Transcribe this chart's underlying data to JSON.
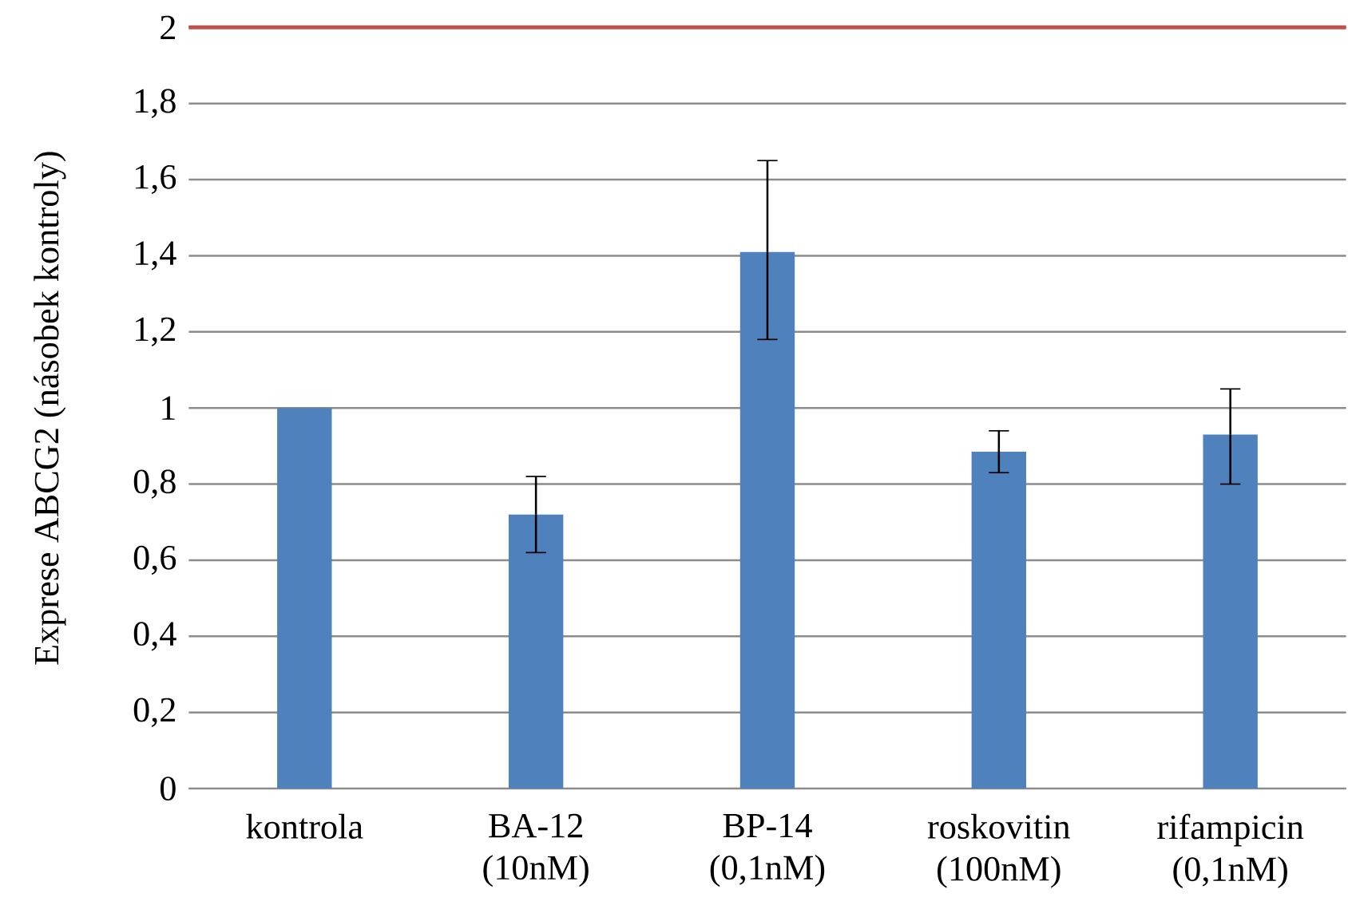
{
  "chart_data": {
    "type": "bar",
    "ylabel": "Exprese ABCG2 (násobek kontroly)",
    "categories": [
      "kontrola",
      "BA-12 (10nM)",
      "BP-14 (0,1nM)",
      "roskovitin (100nM)",
      "rifampicin (0,1nM)"
    ],
    "values": [
      1.0,
      0.72,
      1.41,
      0.885,
      0.93
    ],
    "errors": [
      null,
      [
        0.62,
        0.82
      ],
      [
        1.18,
        1.65
      ],
      [
        0.83,
        0.94
      ],
      [
        0.8,
        1.05
      ]
    ],
    "color": "#4f81bd",
    "ylim": [
      0,
      2
    ],
    "yticks": [
      0,
      {
        "value": 0.2,
        "label": "0,2"
      },
      {
        "value": 0.4,
        "label": "0,4"
      },
      {
        "value": 0.6,
        "label": "0,6"
      },
      {
        "value": 0.8,
        "label": "0,8"
      },
      1,
      {
        "value": 1.2,
        "label": "1,2"
      },
      {
        "value": 1.4,
        "label": "1,4"
      },
      {
        "value": 1.6,
        "label": "1,6"
      },
      {
        "value": 1.8,
        "label": "1,8"
      },
      2
    ],
    "grid": "y",
    "ref_lines": [
      {
        "axis": "y",
        "value": 2,
        "color": "#c0504d"
      }
    ]
  }
}
